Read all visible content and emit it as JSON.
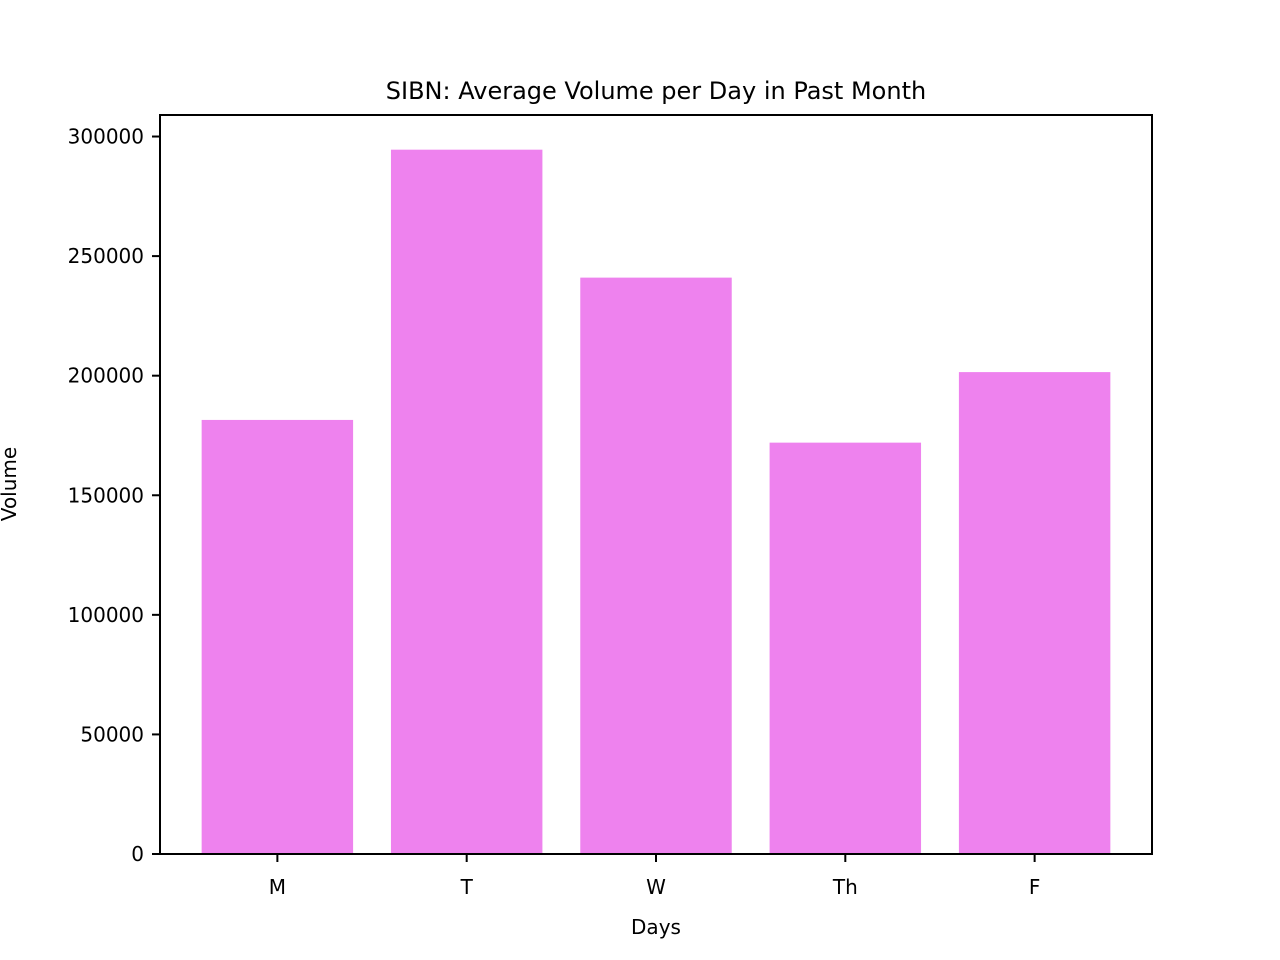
{
  "chart_data": {
    "type": "bar",
    "title": "SIBN: Average Volume per Day in Past Month",
    "xlabel": "Days",
    "ylabel": "Volume",
    "categories": [
      "M",
      "T",
      "W",
      "Th",
      "F"
    ],
    "values": [
      181500,
      294500,
      241000,
      172000,
      201500
    ],
    "ylim": [
      0,
      309000
    ],
    "yticks": [
      0,
      50000,
      100000,
      150000,
      200000,
      250000,
      300000
    ],
    "ytick_labels": [
      "0",
      "50000",
      "100000",
      "150000",
      "200000",
      "250000",
      "300000"
    ],
    "grid": false,
    "legend": "none",
    "bar_color": "#ee82ee"
  }
}
